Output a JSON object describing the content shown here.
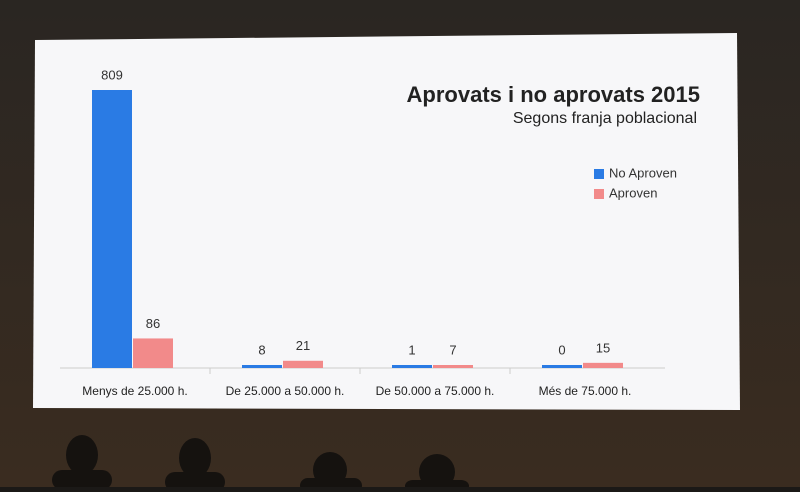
{
  "chart_data": {
    "type": "bar",
    "title": "Aprovats i no aprovats 2015",
    "subtitle": "Segons franja poblacional",
    "categories": [
      "Menys de 25.000 h.",
      "De 25.000 a 50.000 h.",
      "De 50.000 a 75.000 h.",
      "Més de 75.000 h."
    ],
    "series": [
      {
        "name": "No Aproven",
        "color": "#2a7be4",
        "values": [
          809,
          8,
          1,
          0
        ]
      },
      {
        "name": "Aproven",
        "color": "#f28a8a",
        "values": [
          86,
          21,
          7,
          15
        ]
      }
    ],
    "legend": "upper right"
  }
}
